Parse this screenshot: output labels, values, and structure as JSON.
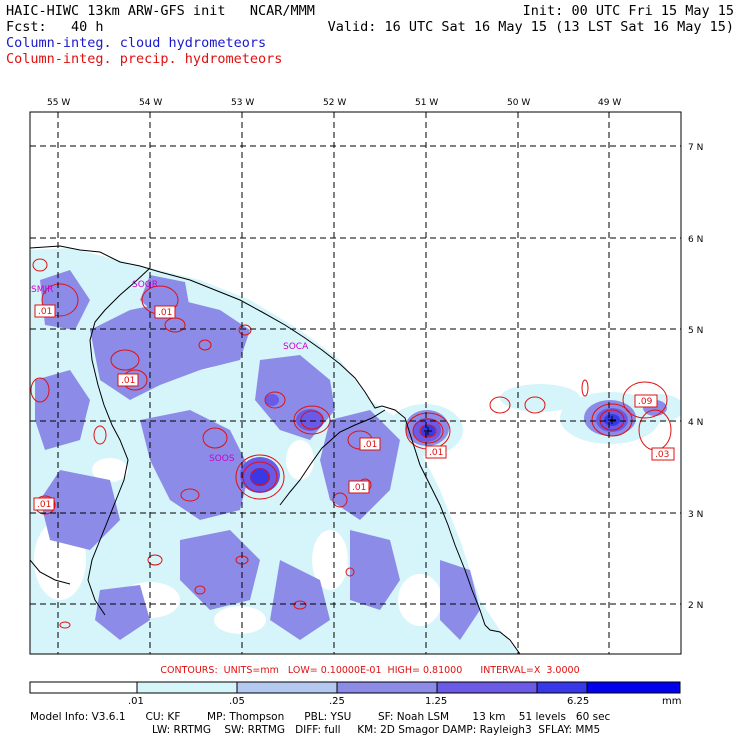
{
  "header": {
    "title": "HAIC-HIWC 13km ARW-GFS init   NCAR/MMM",
    "fcst": "Fcst:   40 h",
    "init": "Init: 00 UTC Fri 15 May 15",
    "valid": "Valid: 16 UTC Sat 16 May 15 (13 LST Sat 16 May 15)",
    "field_cloud": "Column-integ. cloud hydrometeors",
    "field_precip": "Column-integ. precip. hydrometeors"
  },
  "colors": {
    "cloud_text": "#1a1acc",
    "precip_text": "#e01010",
    "shade_1": "#d6f5fa",
    "shade_2": "#b4c8f0",
    "shade_3": "#8c8ce8",
    "shade_4": "#6a5ae6",
    "shade_5": "#3838e8",
    "shade_6": "#0000ee",
    "contour": "#e01010",
    "city": "#cc00cc"
  },
  "map": {
    "lon_labels": [
      "55 W",
      "54 W",
      "53 W",
      "52 W",
      "51 W",
      "50 W",
      "49 W"
    ],
    "lat_labels": [
      "7 N",
      "6 N",
      "5 N",
      "4 N",
      "3 N",
      "2 N"
    ],
    "cities": [
      "SMJR",
      "SOGR",
      "SOCA",
      "SOOS"
    ],
    "contour_labels": [
      ".01",
      ".01",
      ".01",
      ".01",
      ".01",
      ".01",
      ".01",
      ".09",
      ".03"
    ]
  },
  "contours_line": "CONTOURS:  UNITS=mm   LOW= 0.10000E-01  HIGH= 0.81000      INTERVAL=X  3.0000",
  "colorbar": {
    "ticks": [
      ".01",
      ".05",
      ".25",
      "1.25",
      "6.25"
    ],
    "unit": "mm"
  },
  "footer": {
    "line1": "Model Info: V3.6.1      CU: KF        MP: Thompson      PBL: YSU        SF: Noah LSM       13 km    51 levels   60 sec",
    "line2": "LW: RRTMG    SW: RRTMG   DIFF: full     KM: 2D Smagor DAMP: Rayleigh3  SFLAY: MM5"
  }
}
